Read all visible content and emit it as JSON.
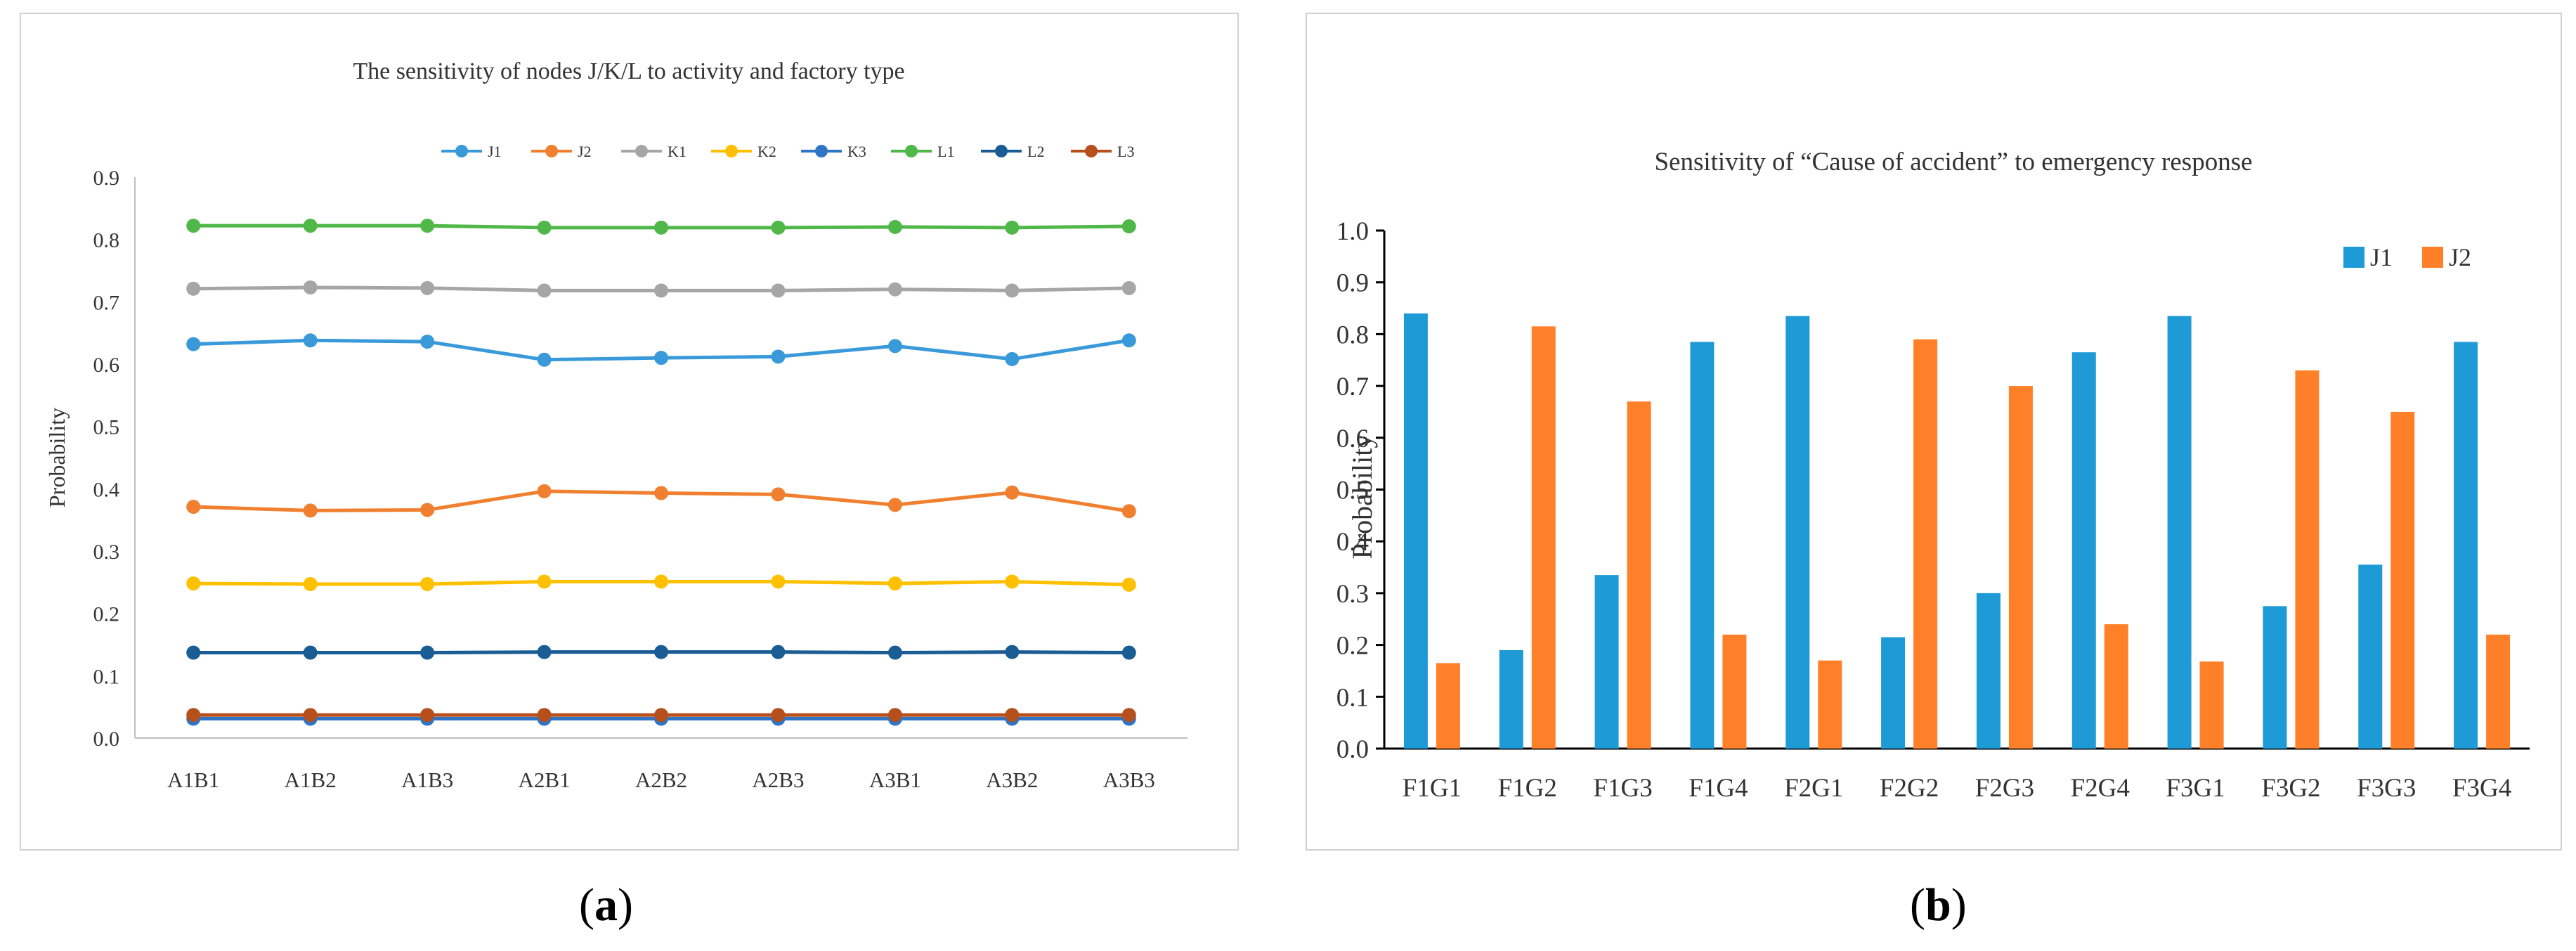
{
  "chart_data": [
    {
      "type": "line",
      "panel_label": "a",
      "title": "The sensitivity of nodes J/K/L to activity and factory type",
      "xlabel": "",
      "ylabel": "Probability",
      "ylim": [
        0,
        0.9
      ],
      "yticks": [
        "0.0",
        "0.1",
        "0.2",
        "0.3",
        "0.4",
        "0.5",
        "0.6",
        "0.7",
        "0.8",
        "0.9"
      ],
      "categories": [
        "A1B1",
        "A1B2",
        "A1B3",
        "A2B1",
        "A2B2",
        "A2B3",
        "A3B1",
        "A3B2",
        "A3B3"
      ],
      "legend_position": "top-right",
      "series": [
        {
          "name": "J1",
          "color": "#3a9ad9",
          "values": [
            0.632,
            0.638,
            0.636,
            0.607,
            0.61,
            0.612,
            0.629,
            0.608,
            0.638
          ]
        },
        {
          "name": "J2",
          "color": "#f08030",
          "values": [
            0.371,
            0.365,
            0.366,
            0.396,
            0.393,
            0.391,
            0.374,
            0.394,
            0.364
          ]
        },
        {
          "name": "K1",
          "color": "#a6a6a6",
          "values": [
            0.721,
            0.723,
            0.722,
            0.718,
            0.718,
            0.718,
            0.72,
            0.718,
            0.722
          ]
        },
        {
          "name": "K2",
          "color": "#ffc000",
          "values": [
            0.248,
            0.247,
            0.247,
            0.251,
            0.251,
            0.251,
            0.248,
            0.251,
            0.246
          ]
        },
        {
          "name": "K3",
          "color": "#2e75c6",
          "values": [
            0.031,
            0.031,
            0.031,
            0.031,
            0.031,
            0.031,
            0.031,
            0.031,
            0.031
          ]
        },
        {
          "name": "L1",
          "color": "#4fb848",
          "values": [
            0.822,
            0.822,
            0.822,
            0.819,
            0.819,
            0.819,
            0.82,
            0.819,
            0.821
          ]
        },
        {
          "name": "L2",
          "color": "#1a5c94",
          "values": [
            0.137,
            0.137,
            0.137,
            0.138,
            0.138,
            0.138,
            0.137,
            0.138,
            0.137
          ]
        },
        {
          "name": "L3",
          "color": "#b5501d",
          "values": [
            0.037,
            0.037,
            0.037,
            0.037,
            0.037,
            0.037,
            0.037,
            0.037,
            0.037
          ]
        }
      ]
    },
    {
      "type": "bar",
      "panel_label": "b",
      "title": "Sensitivity of “Cause of accident” to emergency response",
      "xlabel": "",
      "ylabel": "Probability",
      "ylim": [
        0,
        1.0
      ],
      "yticks": [
        "0.0",
        "0.1",
        "0.2",
        "0.3",
        "0.4",
        "0.5",
        "0.6",
        "0.7",
        "0.8",
        "0.9",
        "1.0"
      ],
      "categories": [
        "F1G1",
        "F1G2",
        "F1G3",
        "F1G4",
        "F2G1",
        "F2G2",
        "F2G3",
        "F2G4",
        "F3G1",
        "F3G2",
        "F3G3",
        "F3G4"
      ],
      "legend_position": "top-right",
      "series": [
        {
          "name": "J1",
          "color": "#1e9bd7",
          "values": [
            0.84,
            0.19,
            0.335,
            0.785,
            0.835,
            0.215,
            0.3,
            0.765,
            0.835,
            0.275,
            0.355,
            0.785
          ]
        },
        {
          "name": "J2",
          "color": "#ff8028",
          "values": [
            0.165,
            0.815,
            0.67,
            0.22,
            0.17,
            0.79,
            0.7,
            0.24,
            0.168,
            0.73,
            0.65,
            0.22
          ]
        }
      ]
    }
  ],
  "captions": {
    "a": "a",
    "b": "b"
  }
}
